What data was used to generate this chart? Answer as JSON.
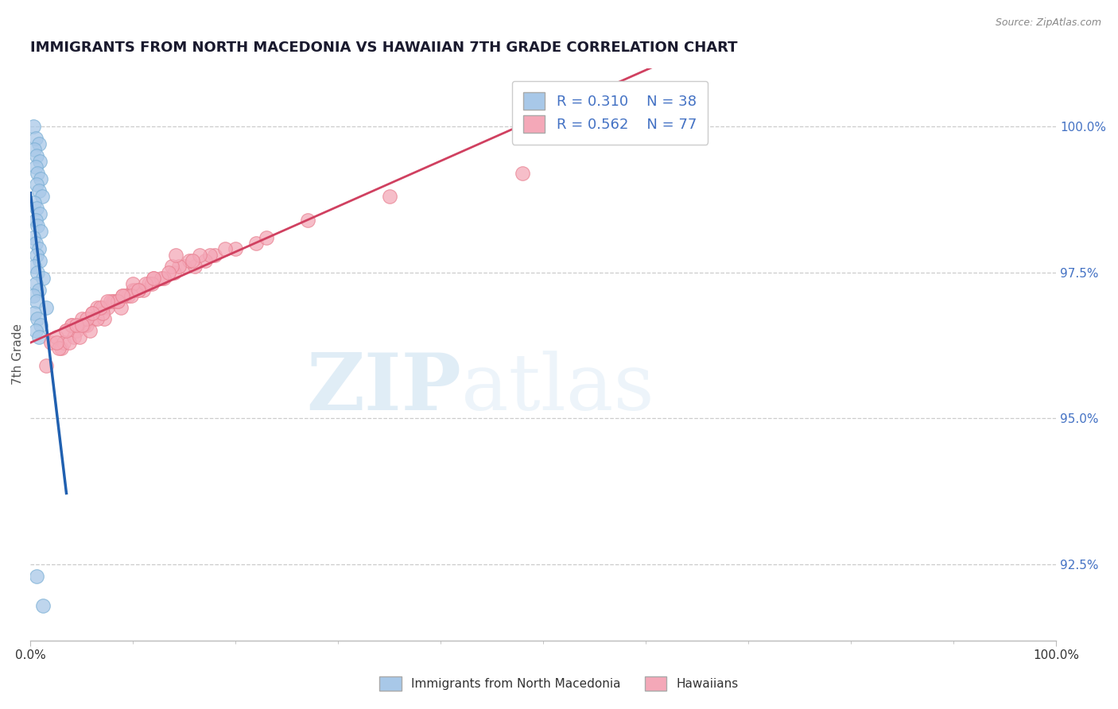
{
  "title": "IMMIGRANTS FROM NORTH MACEDONIA VS HAWAIIAN 7TH GRADE CORRELATION CHART",
  "source": "Source: ZipAtlas.com",
  "ylabel": "7th Grade",
  "right_yticks": [
    92.5,
    95.0,
    97.5,
    100.0
  ],
  "xlim": [
    0.0,
    100.0
  ],
  "ylim": [
    91.2,
    101.0
  ],
  "blue_R": 0.31,
  "blue_N": 38,
  "pink_R": 0.562,
  "pink_N": 77,
  "blue_color": "#a8c8e8",
  "blue_edge_color": "#7aafd4",
  "blue_line_color": "#2060b0",
  "pink_color": "#f4a8b8",
  "pink_edge_color": "#e88090",
  "pink_line_color": "#d04060",
  "legend_label_blue": "Immigrants from North Macedonia",
  "legend_label_pink": "Hawaiians",
  "blue_x": [
    0.3,
    0.5,
    0.8,
    0.4,
    0.6,
    0.9,
    0.5,
    0.7,
    1.0,
    0.6,
    0.8,
    1.1,
    0.4,
    0.6,
    0.9,
    0.5,
    0.7,
    1.0,
    0.3,
    0.5,
    0.8,
    0.6,
    0.9,
    0.4,
    0.7,
    1.2,
    0.5,
    0.8,
    0.3,
    0.6,
    1.5,
    0.4,
    0.7,
    1.0,
    0.5,
    0.8,
    0.6,
    1.2
  ],
  "blue_y": [
    100.0,
    99.8,
    99.7,
    99.6,
    99.5,
    99.4,
    99.3,
    99.2,
    99.1,
    99.0,
    98.9,
    98.8,
    98.7,
    98.6,
    98.5,
    98.4,
    98.3,
    98.2,
    98.1,
    98.0,
    97.9,
    97.8,
    97.7,
    97.6,
    97.5,
    97.4,
    97.3,
    97.2,
    97.1,
    97.0,
    96.9,
    96.8,
    96.7,
    96.6,
    96.5,
    96.4,
    92.3,
    91.8
  ],
  "pink_x": [
    2.0,
    3.5,
    5.0,
    6.5,
    8.0,
    10.0,
    12.0,
    15.0,
    18.0,
    22.0,
    2.5,
    4.0,
    6.0,
    8.5,
    11.0,
    14.0,
    17.0,
    20.0,
    3.0,
    5.5,
    7.5,
    9.5,
    13.0,
    16.0,
    19.0,
    4.5,
    7.0,
    9.0,
    11.5,
    15.5,
    23.0,
    27.0,
    35.0,
    48.0,
    3.2,
    6.2,
    8.2,
    10.5,
    14.5,
    2.8,
    5.2,
    7.8,
    12.8,
    17.5,
    4.2,
    9.2,
    16.5,
    3.8,
    7.2,
    10.2,
    13.8,
    4.8,
    8.8,
    11.8,
    15.8,
    6.5,
    10.0,
    14.2,
    5.8,
    7.0,
    9.8,
    13.5,
    4.0,
    6.8,
    11.2,
    8.5,
    5.5,
    3.5,
    2.5,
    10.5,
    7.5,
    4.5,
    6.0,
    9.0,
    12.0,
    5.0,
    1.5
  ],
  "pink_y": [
    96.3,
    96.5,
    96.7,
    96.9,
    97.0,
    97.2,
    97.4,
    97.6,
    97.8,
    98.0,
    96.4,
    96.6,
    96.8,
    97.0,
    97.2,
    97.5,
    97.7,
    97.9,
    96.2,
    96.6,
    96.9,
    97.1,
    97.4,
    97.6,
    97.9,
    96.5,
    96.9,
    97.1,
    97.3,
    97.7,
    98.1,
    98.4,
    98.8,
    99.2,
    96.3,
    96.7,
    97.0,
    97.2,
    97.6,
    96.2,
    96.6,
    97.0,
    97.4,
    97.8,
    96.4,
    97.1,
    97.8,
    96.3,
    96.7,
    97.2,
    97.6,
    96.4,
    96.9,
    97.3,
    97.7,
    96.7,
    97.3,
    97.8,
    96.5,
    96.8,
    97.1,
    97.5,
    96.6,
    96.9,
    97.3,
    97.0,
    96.7,
    96.5,
    96.3,
    97.2,
    97.0,
    96.6,
    96.8,
    97.1,
    97.4,
    96.6,
    95.9
  ],
  "watermark_zip": "ZIP",
  "watermark_atlas": "atlas",
  "grid_color": "#cccccc",
  "background_color": "#ffffff",
  "title_color": "#1a1a2e",
  "source_color": "#888888",
  "ylabel_color": "#555555",
  "right_tick_color": "#4472c4"
}
